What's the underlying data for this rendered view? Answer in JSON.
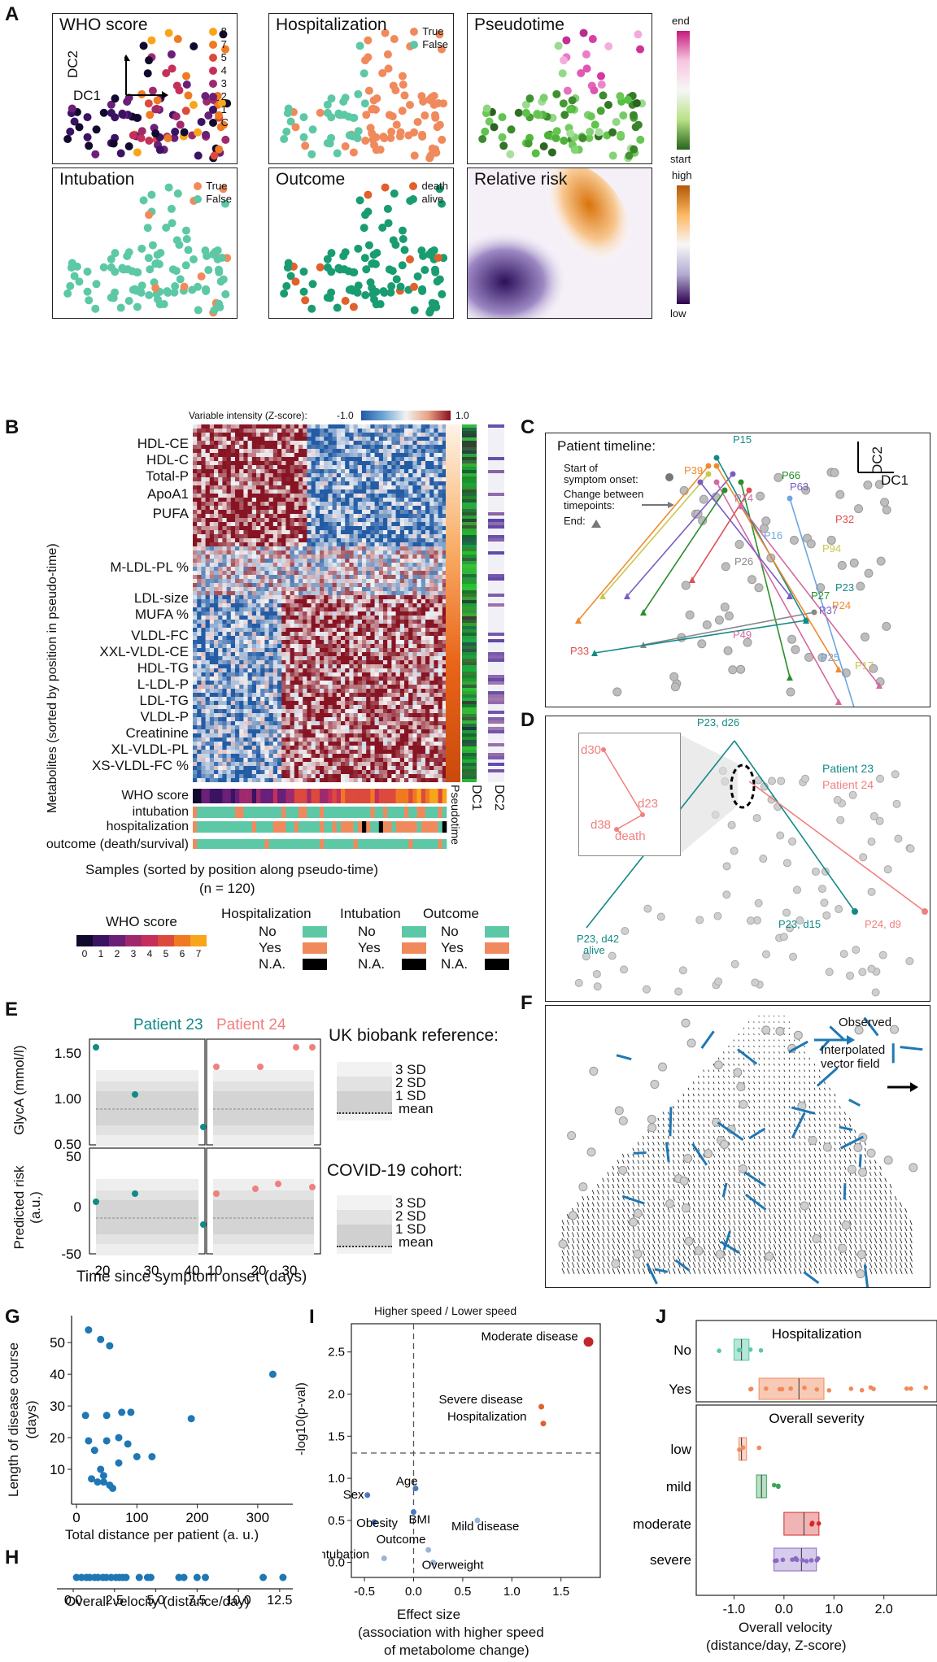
{
  "panels": {
    "A": {
      "letter": "A",
      "plots": [
        {
          "title": "WHO score",
          "legend": [
            "8",
            "7",
            "5",
            "4",
            "3",
            "2",
            "1",
            "C"
          ],
          "legend_colors": [
            "#f9a51a",
            "#f07a22",
            "#dc4a3d",
            "#c4305a",
            "#9e2a6d",
            "#6a1f78",
            "#3a1363",
            "#120a2e"
          ]
        },
        {
          "title": "Hospitalization",
          "legend": [
            "True",
            "False"
          ],
          "legend_colors": [
            "#f08a5d",
            "#5cc8a6"
          ]
        },
        {
          "title": "Pseudotime",
          "cbar_top": "end",
          "cbar_bottom": "start"
        },
        {
          "title": "Intubation",
          "legend": [
            "True",
            "False"
          ],
          "legend_colors": [
            "#f08a5d",
            "#5cc8a6"
          ]
        },
        {
          "title": "Outcome",
          "legend": [
            "death",
            "alive"
          ],
          "legend_colors": [
            "#e0612c",
            "#1a9c72"
          ]
        },
        {
          "title": "Relative risk",
          "cbar_top": "high",
          "cbar_bottom": "low"
        }
      ],
      "axis_dc1": "DC1",
      "axis_dc2": "DC2"
    },
    "B": {
      "letter": "B",
      "colorbar_label": "Variable intensity (Z-score):",
      "colorbar_min": "-1.0",
      "colorbar_max": "1.0",
      "y_label": "Metabolites (sorted by position in pseudo-time)",
      "metabolites": [
        "HDL-CE",
        "HDL-C",
        "Total-P",
        "ApoA1",
        "PUFA",
        "M-LDL-PL %",
        "LDL-size",
        "MUFA %",
        "VLDL-FC",
        "XXL-VLDL-CE",
        "HDL-TG",
        "L-LDL-P",
        "LDL-TG",
        "VLDL-P",
        "Creatinine",
        "XL-VLDL-PL",
        "XS-VLDL-FC %"
      ],
      "side_labels": [
        "Pseudotime",
        "DC1",
        "DC2"
      ],
      "row_labels": [
        "WHO score",
        "intubation",
        "hospitalization",
        "outcome (death/survival)"
      ],
      "x_label": "Samples (sorted by position along pseudo-time)",
      "n_label": "(n = 120)",
      "who_legend_title": "WHO score",
      "who_legend_ticks": [
        "0",
        "1",
        "2",
        "3",
        "4",
        "5",
        "6",
        "7"
      ],
      "who_colors": [
        "#120a2e",
        "#3a1363",
        "#6a1f78",
        "#9e2a6d",
        "#c4305a",
        "#dc4a3d",
        "#f07a22",
        "#f9a51a"
      ],
      "cat_legends": [
        {
          "title": "Hospitalization",
          "items": [
            "No",
            "Yes",
            "N.A."
          ]
        },
        {
          "title": "Intubation",
          "items": [
            "No",
            "Yes",
            "N.A."
          ]
        },
        {
          "title": "Outcome",
          "items": [
            "No",
            "Yes",
            "N.A."
          ]
        }
      ],
      "cat_colors": [
        "#5cc8a6",
        "#f08a5d",
        "#000000"
      ]
    },
    "C": {
      "letter": "C",
      "title": "Patient timeline:",
      "legend_start": "Start of symptom onset:",
      "legend_change": "Change between timepoints:",
      "legend_end": "End:",
      "axis_dc1": "DC1",
      "axis_dc2": "DC2",
      "patients": [
        "P15",
        "P39",
        "P66",
        "P63",
        "P74",
        "P32",
        "P16",
        "P94",
        "P26",
        "P23",
        "P24",
        "P27",
        "P37",
        "P49",
        "P33",
        "P25",
        "P17"
      ]
    },
    "D": {
      "letter": "D",
      "legend": [
        "Patient 23",
        "Patient 24"
      ],
      "legend_colors": [
        "#138a86",
        "#f08080"
      ],
      "labels": [
        "P23, d26",
        "P23, d42",
        "alive",
        "P23, d15",
        "P24, d9"
      ],
      "inset_labels": [
        "d30",
        "d23",
        "d38",
        "death"
      ]
    },
    "E": {
      "letter": "E",
      "patients": [
        "Patient 23",
        "Patient 24"
      ],
      "patient_colors": [
        "#138a86",
        "#f08080"
      ],
      "ylabel_top": "GlycA (mmol/l)",
      "ylabel_bottom": "Predicted risk (a.u.)",
      "yticks_top": [
        "1.50",
        "1.00",
        "0.50"
      ],
      "yticks_bottom": [
        "50",
        "0",
        "-50"
      ],
      "xticks_left": [
        "20",
        "30",
        "40"
      ],
      "xticks_right": [
        "10",
        "20",
        "30"
      ],
      "x_label": "Time since symptom onset (days)",
      "ref_title_top": "UK biobank reference:",
      "ref_title_bottom": "COVID-19 cohort:",
      "ref_items": [
        "3 SD",
        "2 SD",
        "1 SD",
        "mean"
      ]
    },
    "F": {
      "letter": "F",
      "legend_observed": "Observed",
      "legend_interp": "Interpolated vector field"
    },
    "G": {
      "letter": "G",
      "ylabel": "Length of disease course (days)",
      "xlabel": "Total distance per patient (a. u.)",
      "xticks": [
        "0",
        "100",
        "200",
        "300"
      ],
      "yticks": [
        "50",
        "40",
        "30",
        "20",
        "10"
      ],
      "points": [
        [
          20,
          54
        ],
        [
          40,
          51
        ],
        [
          55,
          49
        ],
        [
          325,
          40
        ],
        [
          15,
          27
        ],
        [
          50,
          27
        ],
        [
          75,
          28
        ],
        [
          90,
          28
        ],
        [
          190,
          26
        ],
        [
          20,
          19
        ],
        [
          50,
          19
        ],
        [
          70,
          20
        ],
        [
          85,
          18
        ],
        [
          30,
          16
        ],
        [
          100,
          14
        ],
        [
          125,
          14
        ],
        [
          40,
          10
        ],
        [
          70,
          12
        ],
        [
          25,
          7
        ],
        [
          35,
          6
        ],
        [
          45,
          6
        ],
        [
          55,
          5
        ],
        [
          60,
          4
        ],
        [
          45,
          8
        ]
      ]
    },
    "H": {
      "letter": "H",
      "xlabel": "Overall velocity (distance/day)",
      "xticks": [
        "0.0",
        "2.5",
        "5.0",
        "7.5",
        "10.0",
        "12.5"
      ],
      "values": [
        0.2,
        0.5,
        0.8,
        1.0,
        1.3,
        1.5,
        1.8,
        2.0,
        2.3,
        2.6,
        2.8,
        3.0,
        3.2,
        4.0,
        4.5,
        4.7,
        6.4,
        6.7,
        7.5,
        8.0,
        11.5,
        12.7
      ]
    },
    "I": {
      "letter": "I",
      "top_label": "Higher speed / Lower speed",
      "ylabel": "-log10(p-val)",
      "xlabel": "Effect size",
      "xlabel2": "(association with higher speed",
      "xlabel3": "of metabolome change)",
      "xticks": [
        "-0.5",
        "0.0",
        "0.5",
        "1.0",
        "1.5"
      ],
      "yticks": [
        "2.5",
        "2.0",
        "1.5",
        "1.0",
        "0.5",
        "0.0"
      ],
      "points": [
        {
          "name": "Moderate disease",
          "x": 1.78,
          "y": 2.62,
          "color": "#c0272d"
        },
        {
          "name": "Severe disease",
          "x": 1.3,
          "y": 1.85,
          "color": "#e0612c"
        },
        {
          "name": "Hospitalization",
          "x": 1.32,
          "y": 1.65,
          "color": "#e0612c"
        },
        {
          "name": "Age",
          "x": 0.02,
          "y": 0.88,
          "color": "#4a78c2"
        },
        {
          "name": "Sex",
          "x": -0.47,
          "y": 0.8,
          "color": "#4a78c2"
        },
        {
          "name": "BMI",
          "x": 0.0,
          "y": 0.6,
          "color": "#4a78c2"
        },
        {
          "name": "Mild disease",
          "x": 0.65,
          "y": 0.5,
          "color": "#9bb4dc"
        },
        {
          "name": "Obesity",
          "x": -0.4,
          "y": 0.48,
          "color": "#4a78c2"
        },
        {
          "name": "Outcome",
          "x": 0.15,
          "y": 0.15,
          "color": "#9bb4dc"
        },
        {
          "name": "Intubation",
          "x": -0.3,
          "y": 0.05,
          "color": "#9bb4dc"
        },
        {
          "name": "Overweight",
          "x": 0.2,
          "y": 0.0,
          "color": "#9bb4dc"
        }
      ],
      "pval_line": 1.3
    },
    "J": {
      "letter": "J",
      "title_top": "Hospitalization",
      "title_bottom": "Overall severity",
      "cats_top": [
        "No",
        "Yes"
      ],
      "cats_bottom": [
        "low",
        "mild",
        "moderate",
        "severe"
      ],
      "xlabel": "Overall velocity",
      "xlabel2": "(distance/day, Z-score)",
      "xticks": [
        "-1.0",
        "0.0",
        "1.0",
        "2.0"
      ]
    }
  }
}
